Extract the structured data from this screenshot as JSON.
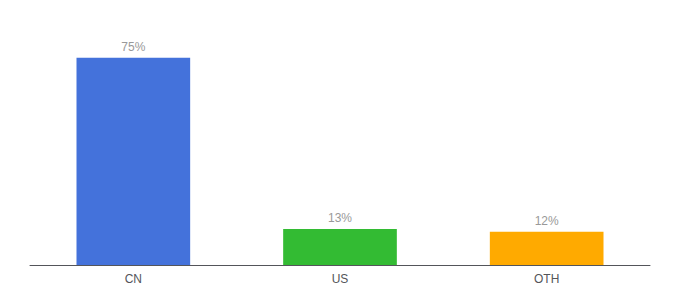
{
  "chart_data": {
    "type": "bar",
    "categories": [
      "CN",
      "US",
      "OTH"
    ],
    "values": [
      75,
      13,
      12
    ],
    "value_labels": [
      "75%",
      "13%",
      "12%"
    ],
    "colors": [
      "#4472db",
      "#33bb33",
      "#ffaa00"
    ],
    "ylim": [
      0,
      85
    ],
    "grid": false,
    "data_labels": true,
    "tick_labels": "x"
  }
}
